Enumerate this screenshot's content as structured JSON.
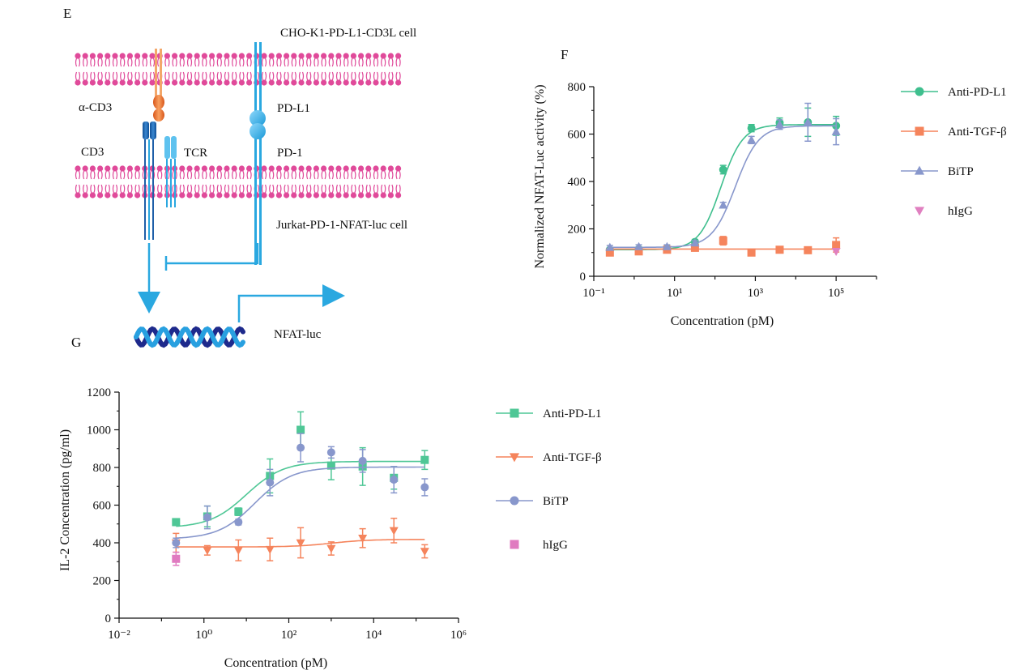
{
  "panels": {
    "e_label": "E",
    "f_label": "F",
    "g_label": "G"
  },
  "schematic": {
    "top_cell": "CHO-K1-PD-L1-CD3L cell",
    "bottom_cell": "Jurkat-PD-1-NFAT-luc cell",
    "anti_cd3": "α-CD3",
    "cd3": "CD3",
    "tcr": "TCR",
    "pdl1": "PD-L1",
    "pd1": "PD-1",
    "reporter": "NFAT-luc",
    "colors": {
      "membrane": "#e04a9a",
      "receptor": "#2aa8e0",
      "cd3": "#1f5fa8",
      "antibody": "#ef7a2a",
      "dna_dark": "#1e2a8c",
      "dna_light": "#28a0e0"
    }
  },
  "chart_data": [
    {
      "id": "F",
      "type": "scatter",
      "title": "",
      "xlabel": "Concentration (pM)",
      "ylabel": "Normalized NFAT-Luc activity (%)",
      "xscale": "log",
      "xlim": [
        0.1,
        1000000
      ],
      "ylim": [
        0,
        800
      ],
      "xticks": [
        0.1,
        10,
        1000,
        100000
      ],
      "xtick_labels": [
        "10⁻¹",
        "10¹",
        "10³",
        "10⁵"
      ],
      "yticks": [
        0,
        200,
        400,
        600,
        800
      ],
      "ytick_labels": [
        "0",
        "200",
        "400",
        "600",
        "800"
      ],
      "legend_position": "right",
      "series": [
        {
          "name": "Anti-PD-L1",
          "color": "#3fbf8e",
          "marker": "circle",
          "fit": "sigmoid",
          "fit_params": {
            "bottom": 112,
            "top": 640,
            "ec50": 140,
            "hill": 1.6
          },
          "x": [
            0.25,
            1.3,
            6.5,
            32,
            160,
            800,
            4000,
            20000,
            100000
          ],
          "y": [
            112,
            115,
            118,
            145,
            450,
            625,
            648,
            650,
            635
          ],
          "err": [
            8,
            8,
            8,
            10,
            18,
            15,
            20,
            60,
            40
          ]
        },
        {
          "name": "Anti-TGF-β",
          "color": "#f5845c",
          "marker": "square",
          "fit": "flat",
          "fit_params": {
            "bottom": 115,
            "top": 115,
            "ec50": 100,
            "hill": 1
          },
          "x": [
            0.25,
            1.3,
            6.5,
            32,
            160,
            800,
            4000,
            20000,
            100000
          ],
          "y": [
            100,
            105,
            112,
            120,
            150,
            100,
            112,
            110,
            132
          ],
          "err": [
            8,
            8,
            8,
            10,
            18,
            8,
            8,
            8,
            30
          ]
        },
        {
          "name": "BiTP",
          "color": "#8897cc",
          "marker": "triangle-up",
          "fit": "sigmoid",
          "fit_params": {
            "bottom": 122,
            "top": 635,
            "ec50": 320,
            "hill": 1.5
          },
          "x": [
            0.25,
            1.3,
            6.5,
            32,
            160,
            800,
            4000,
            20000,
            100000
          ],
          "y": [
            122,
            125,
            125,
            140,
            300,
            575,
            640,
            650,
            610
          ],
          "err": [
            8,
            8,
            8,
            10,
            12,
            15,
            20,
            80,
            55
          ]
        },
        {
          "name": "hIgG",
          "color": "#e080c0",
          "marker": "triangle-down",
          "fit": "none",
          "x": [
            100000
          ],
          "y": [
            105
          ],
          "err": [
            0
          ]
        }
      ]
    },
    {
      "id": "G",
      "type": "scatter",
      "title": "",
      "xlabel": "Concentration (pM)",
      "ylabel": "IL-2 Concentration (pg/ml)",
      "xscale": "log",
      "xlim": [
        0.01,
        1000000
      ],
      "ylim": [
        0,
        1200
      ],
      "xticks": [
        0.01,
        1,
        100,
        10000,
        1000000
      ],
      "xtick_labels": [
        "10⁻²",
        "10⁰",
        "10²",
        "10⁴",
        "10⁶"
      ],
      "yticks": [
        0,
        200,
        400,
        600,
        800,
        1000,
        1200
      ],
      "ytick_labels": [
        "0",
        "200",
        "400",
        "600",
        "800",
        "1000",
        "1200"
      ],
      "legend_position": "right",
      "series": [
        {
          "name": "Anti-PD-L1",
          "color": "#4fc796",
          "marker": "square",
          "fit": "sigmoid",
          "fit_params": {
            "bottom": 480,
            "top": 832,
            "ec50": 10,
            "hill": 1.0
          },
          "x": [
            0.22,
            1.2,
            6.5,
            36,
            190,
            1000,
            5500,
            30000,
            160000
          ],
          "y": [
            510,
            540,
            565,
            755,
            1000,
            810,
            805,
            745,
            840
          ],
          "err": [
            18,
            55,
            20,
            90,
            95,
            75,
            100,
            60,
            50
          ]
        },
        {
          "name": "Anti-TGF-β",
          "color": "#f5845c",
          "marker": "triangle-down",
          "fit": "sigmoid",
          "fit_params": {
            "bottom": 378,
            "top": 418,
            "ec50": 1000,
            "hill": 1.0
          },
          "x": [
            0.22,
            1.2,
            6.5,
            36,
            190,
            1000,
            5500,
            30000,
            160000
          ],
          "y": [
            400,
            360,
            360,
            365,
            400,
            370,
            425,
            465,
            355
          ],
          "err": [
            50,
            25,
            55,
            60,
            80,
            35,
            50,
            65,
            35
          ]
        },
        {
          "name": "BiTP",
          "color": "#8897cc",
          "marker": "circle",
          "fit": "sigmoid",
          "fit_params": {
            "bottom": 420,
            "top": 802,
            "ec50": 16,
            "hill": 1.0
          },
          "x": [
            0.22,
            1.2,
            6.5,
            36,
            190,
            1000,
            5500,
            30000,
            160000
          ],
          "y": [
            400,
            535,
            510,
            720,
            905,
            880,
            835,
            735,
            695
          ],
          "err": [
            25,
            60,
            15,
            70,
            75,
            30,
            60,
            70,
            45
          ]
        },
        {
          "name": "hIgG",
          "color": "#e07ac0",
          "marker": "square",
          "fit": "none",
          "x": [
            0.22
          ],
          "y": [
            315
          ],
          "err": [
            35
          ]
        }
      ]
    }
  ]
}
